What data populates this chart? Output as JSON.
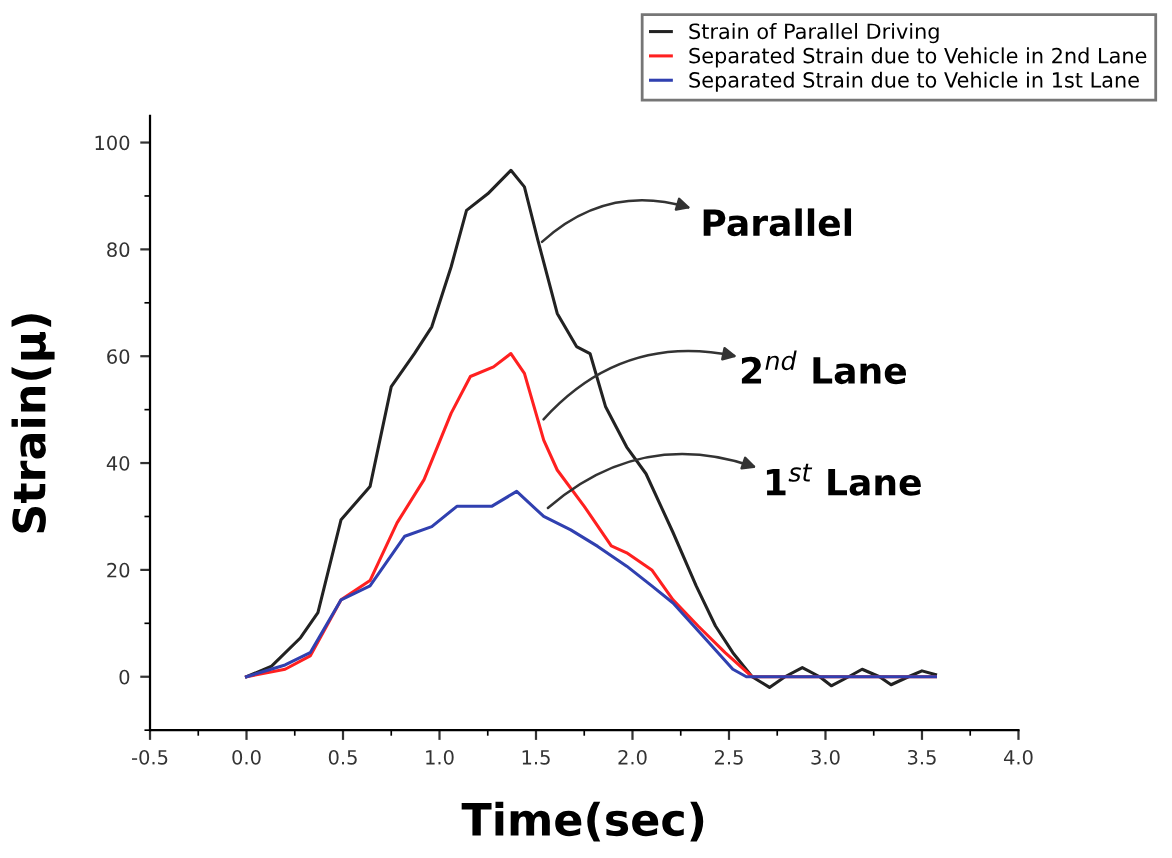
{
  "chart_data": {
    "type": "line",
    "xlabel": "Time(sec)",
    "ylabel": "Strain(μ)",
    "xlim": [
      -0.5,
      4.0
    ],
    "xticks": [
      {
        "value": -0.5,
        "label": "-0.5"
      },
      {
        "value": 0,
        "label": "0.0"
      },
      0.5,
      {
        "value": 1,
        "label": "1.0"
      },
      1.5,
      {
        "value": 2,
        "label": "2.0"
      },
      2.5,
      {
        "value": 3,
        "label": "3.0"
      },
      3.5,
      {
        "value": 4,
        "label": "4.0"
      }
    ],
    "ylim": [
      -10,
      105
    ],
    "yticks": [
      0,
      20,
      40,
      60,
      80,
      100
    ],
    "grid": false,
    "legend": "top right",
    "marker": "none",
    "line_style": "solid",
    "series": [
      {
        "name": "Strain of Parallel Driving",
        "color": "#222222",
        "x": [
          0,
          0.13,
          0.28,
          0.37,
          0.49,
          0.64,
          0.75,
          0.87,
          0.96,
          1.06,
          1.14,
          1.25,
          1.37,
          1.44,
          1.51,
          1.61,
          1.71,
          1.78,
          1.86,
          1.97,
          2.07,
          2.21,
          2.33,
          2.43,
          2.52,
          2.62,
          2.71,
          2.79,
          2.88,
          2.97,
          3.03,
          3.12,
          3.19,
          3.28,
          3.34,
          3.43,
          3.5,
          3.57
        ],
        "values": [
          0,
          2,
          7.3,
          12,
          29.4,
          35.6,
          54.3,
          60.5,
          65.5,
          76.7,
          87.3,
          90.4,
          94.8,
          91.7,
          81.7,
          68,
          61.8,
          60.5,
          50.6,
          43,
          38,
          27,
          17,
          9.5,
          4.5,
          0,
          -2,
          0,
          1.7,
          0,
          -1.7,
          0,
          1.4,
          0,
          -1.5,
          0,
          1.1,
          0.4
        ]
      },
      {
        "name": "Separated Strain due to Vehicle in 2nd Lane",
        "color": "#ff2020",
        "x": [
          0,
          0.2,
          0.33,
          0.49,
          0.64,
          0.78,
          0.92,
          1.06,
          1.16,
          1.28,
          1.37,
          1.44,
          1.54,
          1.61,
          1.75,
          1.89,
          1.97,
          2.1,
          2.21,
          2.34,
          2.48,
          2.62,
          3.57
        ],
        "values": [
          0,
          1.4,
          3.9,
          14.4,
          18,
          28.8,
          36.9,
          49.3,
          56.2,
          58,
          60.5,
          56.8,
          44.3,
          38.7,
          31.9,
          24.5,
          23.2,
          20,
          14.4,
          9.5,
          4.5,
          0,
          0
        ]
      },
      {
        "name": "Separated Strain due to Vehicle in 1st Lane",
        "color": "#3040b0",
        "x": [
          0,
          0.2,
          0.33,
          0.49,
          0.64,
          0.82,
          0.96,
          1.09,
          1.27,
          1.4,
          1.54,
          1.68,
          1.82,
          1.97,
          2.1,
          2.21,
          2.38,
          2.52,
          2.59,
          3.57
        ],
        "values": [
          0,
          2.2,
          4.5,
          14.4,
          17,
          26.3,
          28.1,
          31.9,
          31.9,
          34.7,
          30,
          27.5,
          24.4,
          20.7,
          17,
          13.8,
          7,
          1.4,
          0,
          0
        ]
      }
    ],
    "annotations": [
      {
        "text": "Parallel",
        "x": 1.51,
        "y": 80.7
      },
      {
        "text": "2$^{nd}$ Lane",
        "x": 1.52,
        "y": 47.4
      },
      {
        "text": "1$^{st}$ Lane",
        "x": 1.54,
        "y": 30.9
      }
    ]
  }
}
